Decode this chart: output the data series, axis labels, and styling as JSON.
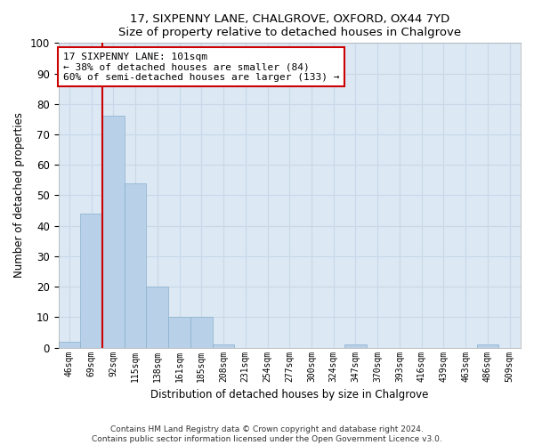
{
  "title1": "17, SIXPENNY LANE, CHALGROVE, OXFORD, OX44 7YD",
  "title2": "Size of property relative to detached houses in Chalgrove",
  "xlabel": "Distribution of detached houses by size in Chalgrove",
  "ylabel": "Number of detached properties",
  "categories": [
    "46sqm",
    "69sqm",
    "92sqm",
    "115sqm",
    "138sqm",
    "161sqm",
    "185sqm",
    "208sqm",
    "231sqm",
    "254sqm",
    "277sqm",
    "300sqm",
    "324sqm",
    "347sqm",
    "370sqm",
    "393sqm",
    "416sqm",
    "439sqm",
    "463sqm",
    "486sqm",
    "509sqm"
  ],
  "values": [
    2,
    44,
    76,
    54,
    20,
    10,
    10,
    1,
    0,
    0,
    0,
    0,
    0,
    1,
    0,
    0,
    0,
    0,
    0,
    1,
    0
  ],
  "bar_color": "#b8d0e8",
  "bar_edge_color": "#8ab0cc",
  "vline_x": 1.5,
  "vline_color": "#cc0000",
  "annotation_text": "17 SIXPENNY LANE: 101sqm\n← 38% of detached houses are smaller (84)\n60% of semi-detached houses are larger (133) →",
  "annotation_box_color": "#ffffff",
  "annotation_box_edge": "#cc0000",
  "ylim": [
    0,
    100
  ],
  "yticks": [
    0,
    10,
    20,
    30,
    40,
    50,
    60,
    70,
    80,
    90,
    100
  ],
  "grid_color": "#c8d8e8",
  "background_color": "#dce8f4",
  "fig_background": "#ffffff",
  "footer1": "Contains HM Land Registry data © Crown copyright and database right 2024.",
  "footer2": "Contains public sector information licensed under the Open Government Licence v3.0."
}
